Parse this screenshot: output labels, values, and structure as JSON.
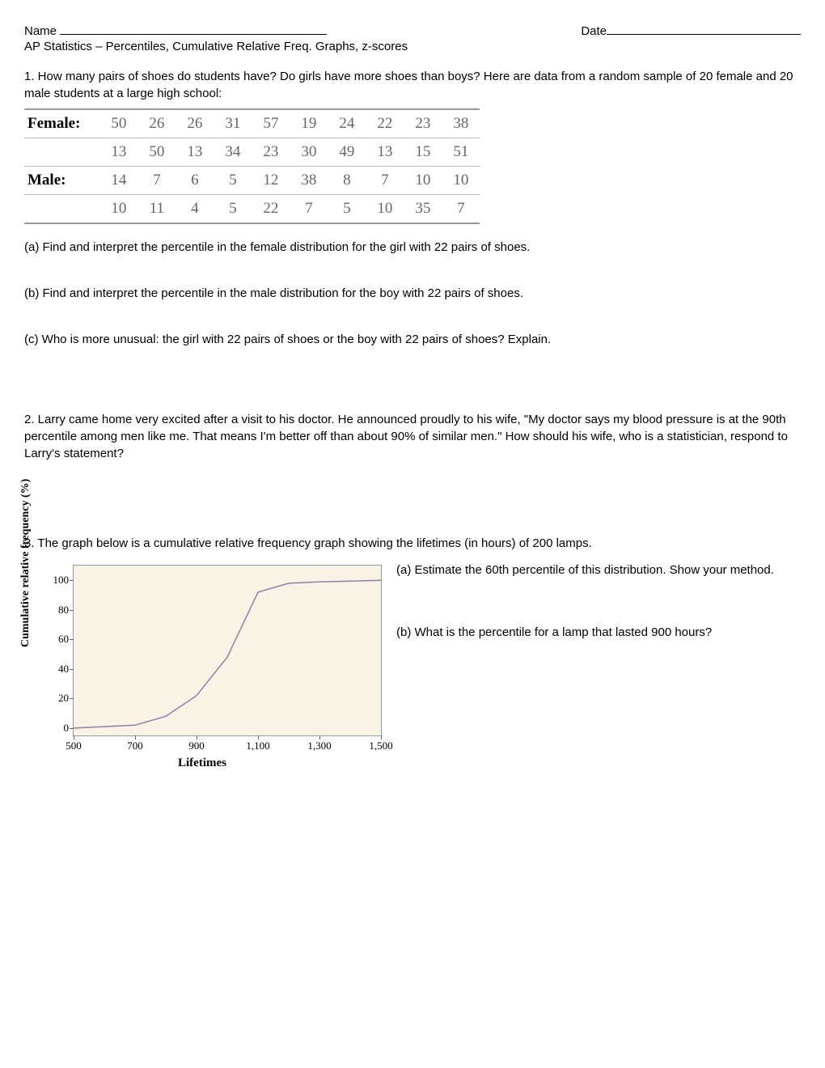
{
  "header": {
    "name_label": "Name",
    "date_label": "Date",
    "subtitle": "AP Statistics – Percentiles, Cumulative Relative Freq. Graphs, z-scores"
  },
  "q1": {
    "prompt": "1. How many pairs of shoes do students have? Do girls have more shoes than boys? Here are data from a random sample of 20 female and 20 male students at a large high school:",
    "table": {
      "female_label": "Female:",
      "male_label": "Male:",
      "rows": [
        [
          "50",
          "26",
          "26",
          "31",
          "57",
          "19",
          "24",
          "22",
          "23",
          "38"
        ],
        [
          "13",
          "50",
          "13",
          "34",
          "23",
          "30",
          "49",
          "13",
          "15",
          "51"
        ],
        [
          "14",
          "7",
          "6",
          "5",
          "12",
          "38",
          "8",
          "7",
          "10",
          "10"
        ],
        [
          "10",
          "11",
          "4",
          "5",
          "22",
          "7",
          "5",
          "10",
          "35",
          "7"
        ]
      ]
    },
    "a": "(a) Find and interpret the percentile in the female distribution for the girl with 22 pairs of shoes.",
    "b": "(b) Find and interpret the percentile in the male distribution for the boy with 22 pairs of shoes.",
    "c": "(c) Who is more unusual: the girl with 22 pairs of shoes or the boy with 22 pairs of shoes? Explain."
  },
  "q2": {
    "text": "2. Larry came home very excited after a visit to his doctor. He announced proudly to his wife, \"My doctor says my blood pressure is at the 90th percentile among men like me. That means I'm better off than about 90% of similar men.\" How should his wife, who is a statistician, respond to Larry's statement?"
  },
  "q3": {
    "prompt": "3. The graph below is a cumulative relative frequency graph showing the lifetimes (in hours) of 200 lamps.",
    "a": "(a) Estimate the 60th percentile of this distribution. Show your method.",
    "b": "(b) What is the percentile for a lamp that lasted 900 hours?",
    "chart": {
      "type": "line",
      "ylabel": "Cumulative relative frequency (%)",
      "xlabel": "Lifetimes",
      "background_color": "#f8f3e4",
      "line_color": "#8a85a8",
      "line_width": 1.5,
      "xlim": [
        500,
        1500
      ],
      "ylim": [
        -5,
        110
      ],
      "x_ticks": [
        500,
        700,
        900,
        1100,
        1300,
        1500
      ],
      "y_ticks": [
        0,
        20,
        40,
        60,
        80,
        100
      ],
      "points": [
        [
          500,
          0
        ],
        [
          700,
          2
        ],
        [
          800,
          8
        ],
        [
          900,
          22
        ],
        [
          1000,
          48
        ],
        [
          1100,
          92
        ],
        [
          1200,
          98
        ],
        [
          1300,
          99
        ],
        [
          1400,
          99.5
        ],
        [
          1500,
          100
        ]
      ]
    }
  }
}
